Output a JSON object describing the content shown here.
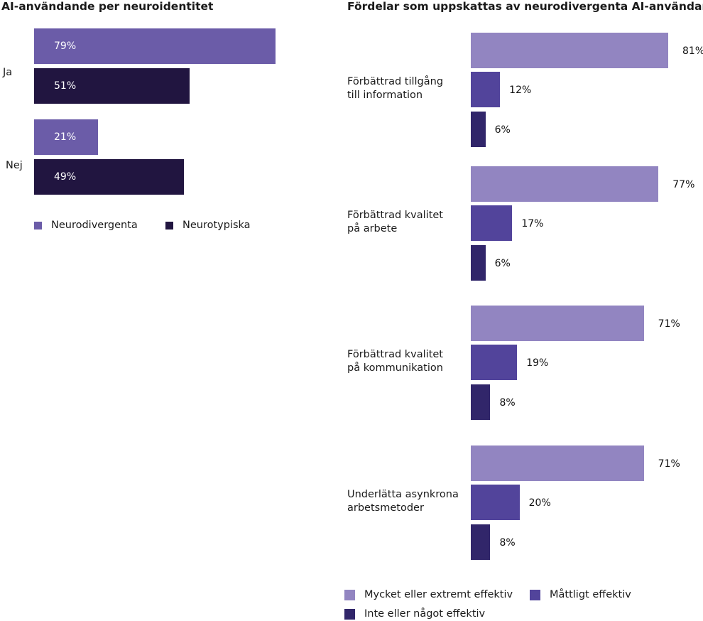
{
  "chart_data": [
    {
      "type": "bar",
      "orientation": "horizontal",
      "title": "AI-användande per neuroidentitet",
      "categories": [
        "Ja",
        "Nej"
      ],
      "series": [
        {
          "name": "Neurodivergenta",
          "values": [
            79,
            21
          ],
          "labels": [
            "79%",
            "21%"
          ],
          "color": "#6b5ca8"
        },
        {
          "name": "Neurotypiska",
          "values": [
            51,
            49
          ],
          "labels": [
            "51%",
            "49%"
          ],
          "color": "#211540"
        }
      ],
      "xlim": [
        0,
        100
      ],
      "legend": "bottom-left"
    },
    {
      "type": "bar",
      "orientation": "horizontal",
      "title": "Fördelar som uppskattas av neurodivergenta AI-användare",
      "categories": [
        [
          "Förbättrad tillgång",
          "till information"
        ],
        [
          "Förbättrad kvalitet",
          "på arbete"
        ],
        [
          "Förbättrad kvalitet",
          "på kommunikation"
        ],
        [
          "Underlätta asynkrona",
          "arbetsmetoder"
        ]
      ],
      "series": [
        {
          "name": "Mycket eller extremt effektiv",
          "values": [
            81,
            77,
            71,
            71
          ],
          "labels": [
            "81%",
            "77%",
            "71%",
            "71%"
          ],
          "color": "#9285c1"
        },
        {
          "name": "Måttligt effektiv",
          "values": [
            12,
            17,
            19,
            20
          ],
          "labels": [
            "12%",
            "17%",
            "19%",
            "20%"
          ],
          "color": "#52449b"
        },
        {
          "name": "Inte eller något effektiv",
          "values": [
            6,
            6,
            8,
            8
          ],
          "labels": [
            "6%",
            "6%",
            "8%",
            "8%"
          ],
          "color": "#31266a"
        }
      ],
      "xlim": [
        0,
        100
      ],
      "legend": "bottom"
    }
  ]
}
